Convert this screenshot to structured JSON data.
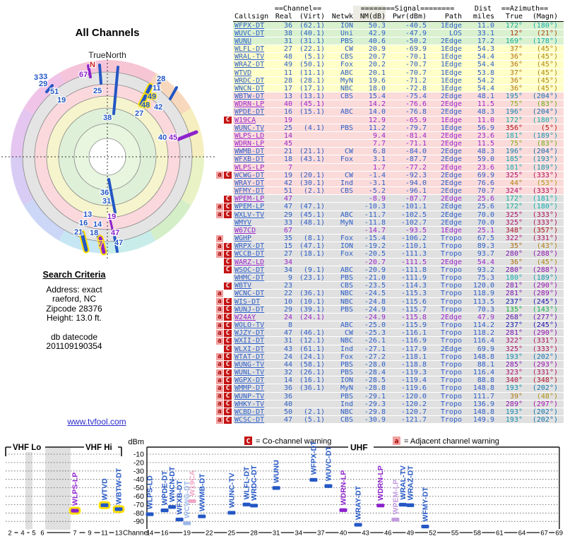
{
  "radar": {
    "title": "All Channels",
    "north_label": "TrueNorth",
    "compass_n": "N",
    "colors": {
      "blue": "#2457c5",
      "purple": "#8d22cc",
      "red": "#cc2222"
    },
    "pastel_ring": [
      "#f6c6d4",
      "#f8d8bc",
      "#f6eebe",
      "#e8f2c4",
      "#d4eec8",
      "#c8ecea",
      "#c6e6f4",
      "#ccd6f6",
      "#d8ccf4",
      "#e4c6f0",
      "#f0c4e8",
      "#f6c4da"
    ],
    "ring_fills": [
      [
        "#e4e4e4",
        120
      ],
      [
        "#fad8dc",
        103
      ],
      [
        "#f6f4cc",
        86
      ],
      [
        "#dff0d8",
        69
      ],
      [
        "#e8f6e0",
        47
      ],
      [
        "#ffffff",
        26
      ]
    ],
    "ring_strokes": [
      26,
      47,
      69,
      86,
      103,
      120
    ],
    "labels": [
      [
        "N",
        127,
        35,
        "red",
        0
      ],
      [
        "67",
        112,
        49,
        "purple",
        0
      ],
      [
        "25",
        132,
        72,
        "blue",
        0
      ],
      [
        "38",
        146,
        110,
        "blue",
        0
      ],
      [
        "3",
        48,
        53,
        "blue",
        0
      ],
      [
        "33",
        55,
        52,
        "blue",
        0
      ],
      [
        "29",
        55,
        62,
        "blue",
        0
      ],
      [
        "51",
        71,
        73,
        "blue",
        0
      ],
      [
        "19",
        81,
        85,
        "blue",
        0
      ],
      [
        "28",
        222,
        55,
        "blue",
        0
      ],
      [
        "11",
        216,
        68,
        "blue",
        0
      ],
      [
        "49",
        209,
        80,
        "blue",
        1
      ],
      [
        "48",
        200,
        92,
        "blue",
        1
      ],
      [
        "27",
        191,
        104,
        "blue",
        0
      ],
      [
        "42",
        218,
        95,
        "blue",
        0
      ],
      [
        "40",
        224,
        138,
        "blue",
        0
      ],
      [
        "45",
        239,
        138,
        "purple",
        0
      ],
      [
        "36",
        142,
        216,
        "blue",
        0
      ],
      [
        "31",
        145,
        228,
        "blue",
        0
      ],
      [
        "13",
        118,
        247,
        "blue",
        0
      ],
      [
        "16",
        112,
        259,
        "blue",
        0
      ],
      [
        "21",
        105,
        272,
        "blue",
        0
      ],
      [
        "14",
        132,
        261,
        "blue",
        0
      ],
      [
        "18",
        127,
        273,
        "blue",
        0
      ],
      [
        "7",
        139,
        289,
        "purple",
        1
      ],
      [
        "19",
        152,
        250,
        "purple",
        0
      ],
      [
        "47",
        157,
        273,
        "purple",
        0
      ],
      [
        "47",
        162,
        287,
        "blue",
        0
      ]
    ],
    "lines": [
      [
        141,
        32,
        143,
        58,
        "blue",
        4,
        0
      ],
      [
        167,
        35,
        161,
        101,
        "blue",
        4,
        0
      ],
      [
        125,
        33,
        128,
        49,
        "purple",
        4,
        0
      ],
      [
        230,
        50,
        224,
        60,
        "blue",
        4,
        0
      ],
      [
        213,
        62,
        207,
        74,
        "blue",
        5,
        1
      ],
      [
        206,
        76,
        200,
        88,
        "blue",
        5,
        1
      ],
      [
        250,
        64,
        241,
        80,
        "blue",
        4,
        0
      ],
      [
        253,
        137,
        278,
        127,
        "purple",
        5,
        0
      ],
      [
        66,
        70,
        74,
        61,
        "blue",
        4,
        0
      ],
      [
        154,
        194,
        163,
        241,
        "blue",
        4,
        0
      ],
      [
        116,
        270,
        122,
        294,
        "blue",
        5,
        1
      ],
      [
        137,
        267,
        141,
        284,
        "blue",
        4,
        0
      ],
      [
        142,
        277,
        147,
        297,
        "purple",
        5,
        1
      ],
      [
        156,
        251,
        160,
        268,
        "purple",
        3,
        0
      ],
      [
        162,
        274,
        166,
        296,
        "blue",
        4,
        0
      ]
    ]
  },
  "search": {
    "heading": "Search Criteria",
    "lines": [
      "Address: exact",
      "raeford, NC",
      "Zipcode 28376",
      "Height: 13.0 ft."
    ],
    "db": [
      "db datecode",
      "201109190354"
    ]
  },
  "site_link": "www.tvfool.com",
  "table": {
    "header1": {
      "channel": "==Channel==",
      "signal": "========Signal========",
      "dist": "Dist",
      "azimuth": "==Azimuth=="
    },
    "header2": [
      "Callsign",
      "Real",
      "(Virt)",
      "Netwk",
      "NM(dB)",
      "Pwr(dBm)",
      "Path",
      "miles",
      "True",
      "(Magn)"
    ],
    "row_fields": [
      "warning",
      "callsign",
      "real",
      "virt",
      "network",
      "nm_db",
      "pwr_dbm",
      "path",
      "miles",
      "azimuth_true",
      "azimuth_magn",
      "band",
      "lp"
    ],
    "band_colors": {
      "green": "#d9f1cf",
      "yellow": "#ffffc8",
      "pink": "#fbdada",
      "gray": "#e0e0e0"
    },
    "text_colors": {
      "normal": "#2e5fc8",
      "lp": "#9a28cc"
    },
    "rows": [
      [
        "",
        "WFPX-DT",
        36,
        "(62.1)",
        "ION",
        50.3,
        -40.5,
        "1Edge",
        11.0,
        172,
        180,
        "green",
        0
      ],
      [
        "",
        "WUVC-DT",
        38,
        "(40.1)",
        "Uni",
        42.9,
        -47.9,
        "LOS",
        33.1,
        12,
        21,
        "green",
        0
      ],
      [
        "",
        "WUNU",
        31,
        "(31.1)",
        "PBS",
        40.6,
        -50.2,
        "2Edge",
        17.2,
        169,
        178,
        "green",
        0
      ],
      [
        "",
        "WLFL-DT",
        27,
        "(22.1)",
        "CW",
        20.9,
        -69.9,
        "1Edge",
        54.3,
        37,
        45,
        "yellow",
        0
      ],
      [
        "",
        "WRAL-TV",
        48,
        "(5.1)",
        "CBS",
        20.7,
        -70.1,
        "1Edge",
        54.4,
        36,
        45,
        "yellow",
        0
      ],
      [
        "",
        "WRAZ-DT",
        49,
        "(50.1)",
        "Fox",
        20.2,
        -70.7,
        "1Edge",
        54.4,
        36,
        45,
        "yellow",
        0
      ],
      [
        "",
        "WTVD",
        11,
        "(11.1)",
        "ABC",
        20.1,
        -70.7,
        "1Edge",
        53.8,
        37,
        45,
        "yellow",
        0
      ],
      [
        "",
        "WRDC-DT",
        28,
        "(28.1)",
        "MyN",
        19.6,
        -71.2,
        "1Edge",
        54.2,
        36,
        45,
        "yellow",
        0
      ],
      [
        "",
        "WNCN-DT",
        17,
        "(17.1)",
        "NBC",
        18.0,
        -72.8,
        "1Edge",
        54.4,
        36,
        45,
        "yellow",
        0
      ],
      [
        "",
        "WBTW-DT",
        13,
        "(13.1)",
        "CBS",
        15.4,
        -75.4,
        "2Edge",
        48.1,
        195,
        204,
        "pink",
        0
      ],
      [
        "",
        "WDRN-LP",
        40,
        "(45.1)",
        "",
        14.2,
        -76.6,
        "2Edge",
        11.5,
        75,
        83,
        "pink",
        1
      ],
      [
        "",
        "WPDE-DT",
        16,
        "(15.1)",
        "ABC",
        14.0,
        -76.8,
        "2Edge",
        48.3,
        196,
        204,
        "pink",
        0
      ],
      [
        "C",
        "W19CA",
        19,
        "",
        "",
        12.9,
        -65.9,
        "1Edge",
        11.0,
        172,
        180,
        "pink",
        1
      ],
      [
        "",
        "WUNC-TV",
        25,
        "(4.1)",
        "PBS",
        11.2,
        -79.7,
        "1Edge",
        56.9,
        356,
        5,
        "pink",
        0
      ],
      [
        "",
        "WLPS-LD",
        14,
        "",
        "",
        9.4,
        -81.4,
        "2Edge",
        23.6,
        181,
        189,
        "pink",
        1
      ],
      [
        "",
        "WDRN-LP",
        45,
        "",
        "",
        7.7,
        -71.1,
        "2Edge",
        11.5,
        75,
        83,
        "pink",
        1
      ],
      [
        "",
        "WWMB-DT",
        21,
        "(21.1)",
        "CW",
        6.8,
        -84.0,
        "2Edge",
        48.3,
        196,
        204,
        "pink",
        0
      ],
      [
        "",
        "WFXB-DT",
        18,
        "(43.1)",
        "Fox",
        3.1,
        -87.7,
        "2Edge",
        59.0,
        185,
        193,
        "pink",
        0
      ],
      [
        "",
        "WLPS-LP",
        7,
        "",
        "",
        1.7,
        -77.2,
        "2Edge",
        23.6,
        181,
        189,
        "pink",
        1
      ],
      [
        "aC",
        "WCWG-DT",
        19,
        "(20.1)",
        "CW",
        -1.4,
        -92.3,
        "2Edge",
        69.9,
        325,
        333,
        "pink",
        0
      ],
      [
        "",
        "WRAY-DT",
        42,
        "(30.1)",
        "Ind",
        -3.1,
        -94.0,
        "2Edge",
        76.6,
        44,
        53,
        "pink",
        0
      ],
      [
        "",
        "WFMY-DT",
        51,
        "(2.1)",
        "CBS",
        -5.2,
        -96.1,
        "2Edge",
        70.7,
        324,
        333,
        "pink",
        0
      ],
      [
        "C",
        "WPEM-LP",
        47,
        "",
        "",
        -8.9,
        -87.7,
        "2Edge",
        25.6,
        172,
        181,
        "gray",
        1
      ],
      [
        "aC",
        "WPEM-LP",
        47,
        "(47.1)",
        "",
        -10.3,
        -101.1,
        "2Edge",
        25.6,
        172,
        180,
        "gray",
        0
      ],
      [
        "aC",
        "WXLV-TV",
        29,
        "(45.1)",
        "ABC",
        -11.7,
        -102.5,
        "2Edge",
        70.0,
        325,
        333,
        "gray",
        0
      ],
      [
        "",
        "WMYV",
        33,
        "(48.1)",
        "MyN",
        -11.8,
        -102.7,
        "2Edge",
        70.0,
        325,
        333,
        "gray",
        0
      ],
      [
        "",
        "W67CD",
        67,
        "",
        "",
        -14.7,
        -93.5,
        "1Edge",
        25.1,
        348,
        357,
        "gray",
        1
      ],
      [
        "a",
        "WGHP",
        35,
        "(8.1)",
        "Fox",
        -15.4,
        -106.2,
        "Tropo",
        67.5,
        322,
        331,
        "gray",
        0
      ],
      [
        "aC",
        "WRPX-DT",
        15,
        "(47.1)",
        "ION",
        -19.2,
        -110.1,
        "Tropo",
        89.3,
        35,
        43,
        "gray",
        0
      ],
      [
        "aC",
        "WCCB-DT",
        27,
        "(18.1)",
        "Fox",
        -20.5,
        -111.3,
        "Tropo",
        93.7,
        280,
        288,
        "gray",
        0
      ],
      [
        "C",
        "WARZ-LD",
        34,
        "",
        "",
        -20.7,
        -111.5,
        "2Edge",
        54.4,
        36,
        45,
        "gray",
        1
      ],
      [
        "C",
        "WSOC-DT",
        34,
        "(9.1)",
        "ABC",
        -20.9,
        -111.8,
        "Tropo",
        93.2,
        280,
        288,
        "gray",
        0
      ],
      [
        "",
        "WHMC-DT",
        9,
        "(23.1)",
        "PBS",
        -21.0,
        -111.9,
        "Tropo",
        75.3,
        180,
        189,
        "gray",
        0
      ],
      [
        "C",
        "WBTV",
        23,
        "",
        "CBS",
        -23.5,
        -114.3,
        "Tropo",
        120.0,
        281,
        290,
        "gray",
        0
      ],
      [
        "a",
        "WCNC-DT",
        22,
        "(36.1)",
        "NBC",
        -24.5,
        -115.3,
        "Tropo",
        118.9,
        281,
        289,
        "gray",
        0
      ],
      [
        "aC",
        "WIS-DT",
        10,
        "(10.1)",
        "NBC",
        -24.8,
        -115.6,
        "Tropo",
        113.5,
        237,
        245,
        "gray",
        0
      ],
      [
        "aC",
        "WUNJ-DT",
        29,
        "(39.1)",
        "PBS",
        -24.9,
        -115.7,
        "Tropo",
        70.3,
        135,
        143,
        "gray",
        0
      ],
      [
        "aC",
        "W24AY",
        24,
        "(24.1)",
        "",
        -24.9,
        -115.8,
        "2Edge",
        47.9,
        268,
        277,
        "gray",
        1
      ],
      [
        "aC",
        "WOLO-TV",
        8,
        "",
        "ABC",
        -25.0,
        -115.9,
        "Tropo",
        114.2,
        237,
        245,
        "gray",
        0
      ],
      [
        "aC",
        "WJZY-DT",
        47,
        "(46.1)",
        "CW",
        -25.3,
        -116.1,
        "Tropo",
        118.2,
        281,
        290,
        "gray",
        0
      ],
      [
        "aC",
        "WXII-DT",
        31,
        "(12.1)",
        "NBC",
        -26.1,
        -116.9,
        "Tropo",
        116.4,
        322,
        331,
        "gray",
        0
      ],
      [
        "C",
        "WLXI-DT",
        43,
        "(61.1)",
        "Ind",
        -27.1,
        -117.9,
        "2Edge",
        69.9,
        325,
        333,
        "gray",
        0
      ],
      [
        "aC",
        "WTAT-DT",
        24,
        "(24.1)",
        "Fox",
        -27.2,
        -118.1,
        "Tropo",
        148.8,
        193,
        202,
        "gray",
        0
      ],
      [
        "aC",
        "WUNG-TV",
        44,
        "(58.1)",
        "PBS",
        -28.0,
        -118.8,
        "Tropo",
        88.1,
        285,
        293,
        "gray",
        0
      ],
      [
        "aC",
        "WUNL-TV",
        32,
        "(26.1)",
        "PBS",
        -28.4,
        -119.3,
        "Tropo",
        116.4,
        323,
        331,
        "gray",
        0
      ],
      [
        "aC",
        "WGPX-DT",
        14,
        "(16.1)",
        "ION",
        -28.5,
        -119.4,
        "Tropo",
        88.8,
        340,
        348,
        "gray",
        0
      ],
      [
        "aC",
        "WMMP-DT",
        36,
        "(36.1)",
        "MyN",
        -28.8,
        -119.6,
        "Tropo",
        148.8,
        193,
        202,
        "gray",
        0
      ],
      [
        "aC",
        "WUNP-TV",
        36,
        "",
        "PBS",
        -29.1,
        -120.0,
        "Tropo",
        111.7,
        39,
        48,
        "gray",
        0
      ],
      [
        "aC",
        "WHKY-TV",
        40,
        "",
        "Ind",
        -29.3,
        -120.2,
        "Tropo",
        136.9,
        289,
        297,
        "gray",
        0
      ],
      [
        "aC",
        "WCBD-DT",
        50,
        "(2.1)",
        "NBC",
        -29.8,
        -120.7,
        "Tropo",
        148.8,
        193,
        202,
        "gray",
        0
      ],
      [
        "aC",
        "WCSC-DT",
        47,
        "(5.1)",
        "CBS",
        -30.9,
        -121.7,
        "Tropo",
        149.9,
        193,
        202,
        "gray",
        0
      ]
    ]
  },
  "legend": {
    "co_symbol": "C",
    "co_text": "= Co-channel warning",
    "adj_symbol": "a",
    "adj_text": "= Adjacent channel warning"
  },
  "charts": {
    "dbm_title": "dBm",
    "dbm_ticks": [
      -10,
      -20,
      -30,
      -40,
      -50,
      -60,
      -70,
      -80,
      -90
    ],
    "channel_label": "Channel",
    "bar_colors": {
      "blue": "#2457c5",
      "purple": "#8d22cc",
      "lightblue": "#9db9ea",
      "lavender": "#c39ae0",
      "pink": "#efa6c5"
    },
    "vhf": {
      "label_lo": "VHF Lo",
      "label_hi": "VHF Hi",
      "ticks": [
        2,
        4,
        5,
        6,
        7,
        9,
        11,
        13
      ],
      "bars": [
        [
          7,
          "WLPS-LP",
          -77.2,
          "purple",
          1
        ],
        [
          11,
          "WTVD",
          -70.7,
          "blue",
          1
        ],
        [
          13,
          "WBTW-DT",
          -75.4,
          "blue",
          1
        ]
      ]
    },
    "uhf": {
      "label": "UHF",
      "ticks": [
        14,
        16,
        19,
        22,
        25,
        28,
        31,
        34,
        37,
        40,
        43,
        46,
        49,
        52,
        55,
        58,
        61,
        64,
        67,
        69
      ],
      "bars": [
        [
          14,
          "WLPS-LD",
          -81.4,
          "blue",
          0
        ],
        [
          16,
          "WPDE-DT",
          -76.8,
          "blue",
          0
        ],
        [
          17,
          "WNCN-DT",
          -72.8,
          "blue",
          0
        ],
        [
          18,
          "WFXB-DT",
          -87.7,
          "blue",
          0
        ],
        [
          19,
          "WCWG-DT",
          -92.3,
          "lightblue",
          0
        ],
        [
          19.7,
          "W19CA",
          -65.9,
          "pink",
          0
        ],
        [
          21,
          "WWMB-DT",
          -84.0,
          "blue",
          0
        ],
        [
          25,
          "WUNC-TV",
          -79.7,
          "blue",
          0
        ],
        [
          27,
          "WLFL-DT",
          -69.9,
          "blue",
          0
        ],
        [
          28,
          "WRDC-DT",
          -71.2,
          "blue",
          0
        ],
        [
          31,
          "WUNU",
          -50.2,
          "blue",
          0
        ],
        [
          36,
          "WFPX-DT",
          -40.5,
          "blue",
          0
        ],
        [
          38,
          "WUVC-DT",
          -47.9,
          "blue",
          0
        ],
        [
          40,
          "WDRN-LP",
          -76.6,
          "purple",
          0
        ],
        [
          42,
          "WRAY-DT",
          -94.0,
          "blue",
          0
        ],
        [
          45,
          "WDRN-LP",
          -71.1,
          "purple",
          0
        ],
        [
          47,
          "WPEM-LP",
          -87.7,
          "lavender",
          0
        ],
        [
          48,
          "WRAL-TV",
          -70.1,
          "blue",
          0
        ],
        [
          49,
          "WRAZ-DT",
          -70.7,
          "blue",
          0
        ],
        [
          51,
          "WFMY-DT",
          -96.1,
          "blue",
          0
        ]
      ]
    }
  }
}
